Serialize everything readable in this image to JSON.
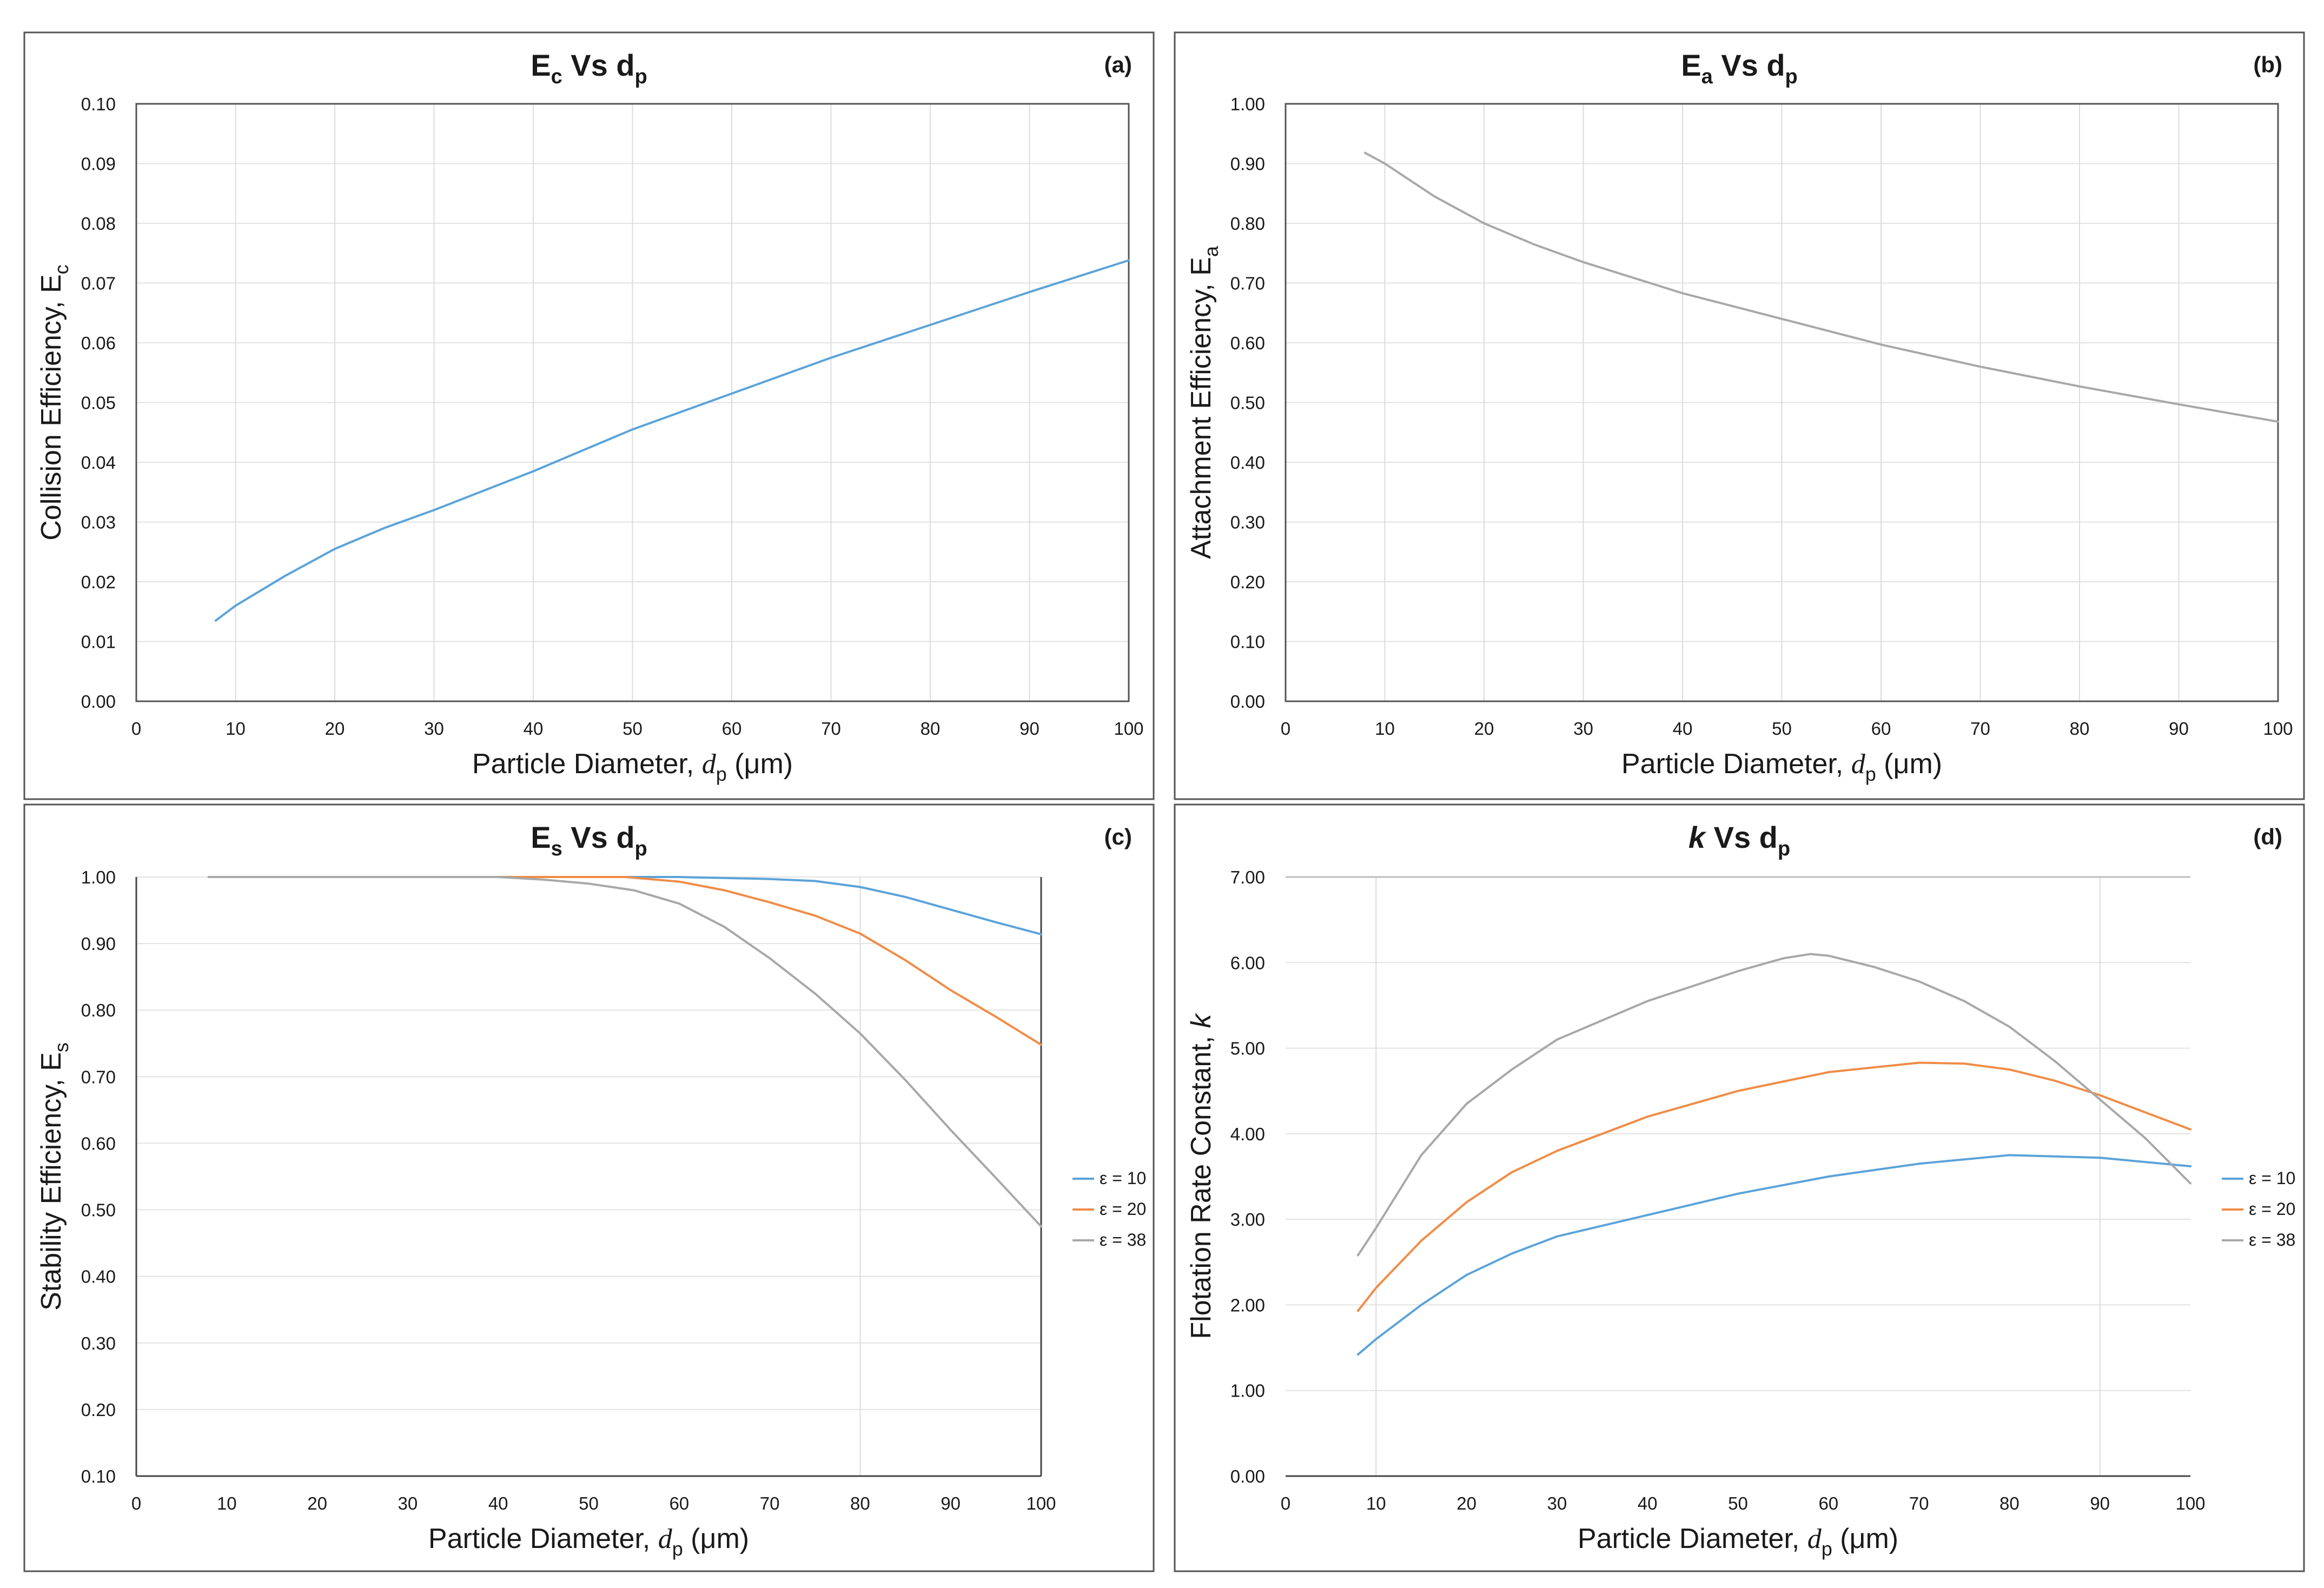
{
  "chart_data": [
    {
      "panel_label": "(a)",
      "title_main": "E",
      "title_sub1": "c",
      "title_mid": " Vs d",
      "title_sub2": "p",
      "type": "line",
      "xlabel_prefix": "Particle Diameter, ",
      "xlabel_var": "d",
      "xlabel_sub": "p",
      "xlabel_suffix": " (μm)",
      "ylabel_main": "Collision Efficiency, E",
      "ylabel_sub": "c",
      "xlim": [
        0,
        100
      ],
      "ylim": [
        0,
        0.1
      ],
      "xticks": [
        "0",
        "10",
        "20",
        "30",
        "40",
        "50",
        "60",
        "70",
        "80",
        "90",
        "100"
      ],
      "yticks": [
        "0.00",
        "0.01",
        "0.02",
        "0.03",
        "0.04",
        "0.05",
        "0.06",
        "0.07",
        "0.08",
        "0.09",
        "0.10"
      ],
      "x_gridlines": [
        10,
        20,
        30,
        40,
        50,
        60,
        70,
        80,
        90
      ],
      "frame": "box",
      "legend": [],
      "series": [
        {
          "name": "Ec",
          "color": "#5ba3d9",
          "x": [
            8,
            10,
            15,
            20,
            25,
            30,
            40,
            50,
            60,
            70,
            80,
            90,
            100
          ],
          "y": [
            0.0135,
            0.016,
            0.021,
            0.0255,
            0.029,
            0.032,
            0.0385,
            0.0455,
            0.0515,
            0.0575,
            0.063,
            0.0685,
            0.0738
          ]
        }
      ]
    },
    {
      "panel_label": "(b)",
      "title_main": "E",
      "title_sub1": "a",
      "title_mid": " Vs d",
      "title_sub2": "p",
      "type": "line",
      "xlabel_prefix": "Particle Diameter, ",
      "xlabel_var": "d",
      "xlabel_sub": "p",
      "xlabel_suffix": " (μm)",
      "ylabel_main": "Attachment Efficiency, E",
      "ylabel_sub": "a",
      "xlim": [
        0,
        100
      ],
      "ylim": [
        0,
        1
      ],
      "xticks": [
        "0",
        "10",
        "20",
        "30",
        "40",
        "50",
        "60",
        "70",
        "80",
        "90",
        "100"
      ],
      "yticks": [
        "0.00",
        "0.10",
        "0.20",
        "0.30",
        "0.40",
        "0.50",
        "0.60",
        "0.70",
        "0.80",
        "0.90",
        "1.00"
      ],
      "x_gridlines": [
        10,
        20,
        30,
        40,
        50,
        60,
        70,
        80,
        90
      ],
      "frame": "box",
      "legend": [],
      "series": [
        {
          "name": "Ea",
          "color": "#a8a8a8",
          "x": [
            8,
            10,
            15,
            20,
            25,
            30,
            40,
            50,
            60,
            70,
            80,
            90,
            100
          ],
          "y": [
            0.918,
            0.9,
            0.845,
            0.8,
            0.765,
            0.735,
            0.683,
            0.64,
            0.597,
            0.56,
            0.527,
            0.497,
            0.468
          ]
        }
      ]
    },
    {
      "panel_label": "(c)",
      "title_main": "E",
      "title_sub1": "s",
      "title_mid": " Vs d",
      "title_sub2": "p",
      "type": "line",
      "xlabel_prefix": "Particle Diameter, ",
      "xlabel_var": "d",
      "xlabel_sub": "p",
      "xlabel_suffix": " (μm)",
      "ylabel_main": "Stability Efficiency, E",
      "ylabel_sub": "s",
      "xlim": [
        0,
        100
      ],
      "ylim": [
        0.1,
        1
      ],
      "xticks": [
        "0",
        "10",
        "20",
        "30",
        "40",
        "50",
        "60",
        "70",
        "80",
        "90",
        "100"
      ],
      "yticks": [
        "0.10",
        "0.20",
        "0.30",
        "0.40",
        "0.50",
        "0.60",
        "0.70",
        "0.80",
        "0.90",
        "1.00"
      ],
      "x_gridlines": [
        80
      ],
      "frame": "left-bottom-right",
      "legend": [
        "ε = 10",
        "ε = 20",
        "ε = 38"
      ],
      "series": [
        {
          "name": "ε = 10",
          "color": "#5ba3d9",
          "x": [
            8,
            40,
            50,
            60,
            70,
            75,
            80,
            85,
            90,
            95,
            100
          ],
          "y": [
            1.0,
            1.0,
            1.0,
            1.0,
            0.997,
            0.994,
            0.985,
            0.97,
            0.951,
            0.932,
            0.914
          ]
        },
        {
          "name": "ε = 20",
          "color": "#f08c47",
          "x": [
            8,
            40,
            54,
            60,
            65,
            70,
            75,
            80,
            85,
            90,
            95,
            100
          ],
          "y": [
            1.0,
            1.0,
            1.0,
            0.993,
            0.98,
            0.962,
            0.942,
            0.915,
            0.875,
            0.83,
            0.79,
            0.748
          ]
        },
        {
          "name": "ε = 38",
          "color": "#a8a8a8",
          "x": [
            8,
            40,
            45,
            50,
            55,
            60,
            65,
            70,
            75,
            80,
            85,
            90,
            95,
            100
          ],
          "y": [
            1.0,
            1.0,
            0.996,
            0.99,
            0.98,
            0.96,
            0.925,
            0.878,
            0.825,
            0.765,
            0.695,
            0.62,
            0.548,
            0.475
          ]
        }
      ]
    },
    {
      "panel_label": "(d)",
      "title_main": "k",
      "title_sub1": "",
      "title_mid": " Vs d",
      "title_sub2": "p",
      "type": "line",
      "xlabel_prefix": "Particle Diameter, ",
      "xlabel_var": "d",
      "xlabel_sub": "p",
      "xlabel_suffix": " (μm)",
      "ylabel_main": "Flotation Rate Constant, ",
      "ylabel_var": "k",
      "ylabel_sub": "",
      "xlim": [
        0,
        100
      ],
      "ylim": [
        0,
        7
      ],
      "xticks": [
        "0",
        "10",
        "20",
        "30",
        "40",
        "50",
        "60",
        "70",
        "80",
        "90",
        "100"
      ],
      "yticks": [
        "0.00",
        "1.00",
        "2.00",
        "3.00",
        "4.00",
        "5.00",
        "6.00",
        "7.00"
      ],
      "x_gridlines": [
        10,
        90
      ],
      "frame": "bottom-top",
      "legend": [
        "ε = 10",
        "ε = 20",
        "ε = 38"
      ],
      "series": [
        {
          "name": "ε = 10",
          "color": "#5ba3d9",
          "x": [
            8,
            10,
            15,
            20,
            25,
            30,
            40,
            50,
            60,
            70,
            80,
            90,
            100
          ],
          "y": [
            1.42,
            1.6,
            2.0,
            2.35,
            2.6,
            2.8,
            3.05,
            3.3,
            3.5,
            3.65,
            3.75,
            3.72,
            3.62
          ]
        },
        {
          "name": "ε = 20",
          "color": "#f08c47",
          "x": [
            8,
            10,
            15,
            20,
            25,
            30,
            40,
            50,
            60,
            70,
            75,
            80,
            85,
            90,
            95,
            100
          ],
          "y": [
            1.93,
            2.2,
            2.75,
            3.2,
            3.55,
            3.8,
            4.2,
            4.5,
            4.72,
            4.83,
            4.82,
            4.75,
            4.62,
            4.45,
            4.25,
            4.05
          ]
        },
        {
          "name": "ε = 38",
          "color": "#a8a8a8",
          "x": [
            8,
            10,
            15,
            20,
            25,
            30,
            40,
            50,
            55,
            58,
            60,
            65,
            70,
            75,
            80,
            85,
            90,
            95,
            100
          ],
          "y": [
            2.58,
            2.9,
            3.75,
            4.35,
            4.75,
            5.1,
            5.55,
            5.9,
            6.05,
            6.1,
            6.08,
            5.95,
            5.78,
            5.55,
            5.25,
            4.85,
            4.4,
            3.95,
            3.42
          ]
        }
      ]
    }
  ]
}
